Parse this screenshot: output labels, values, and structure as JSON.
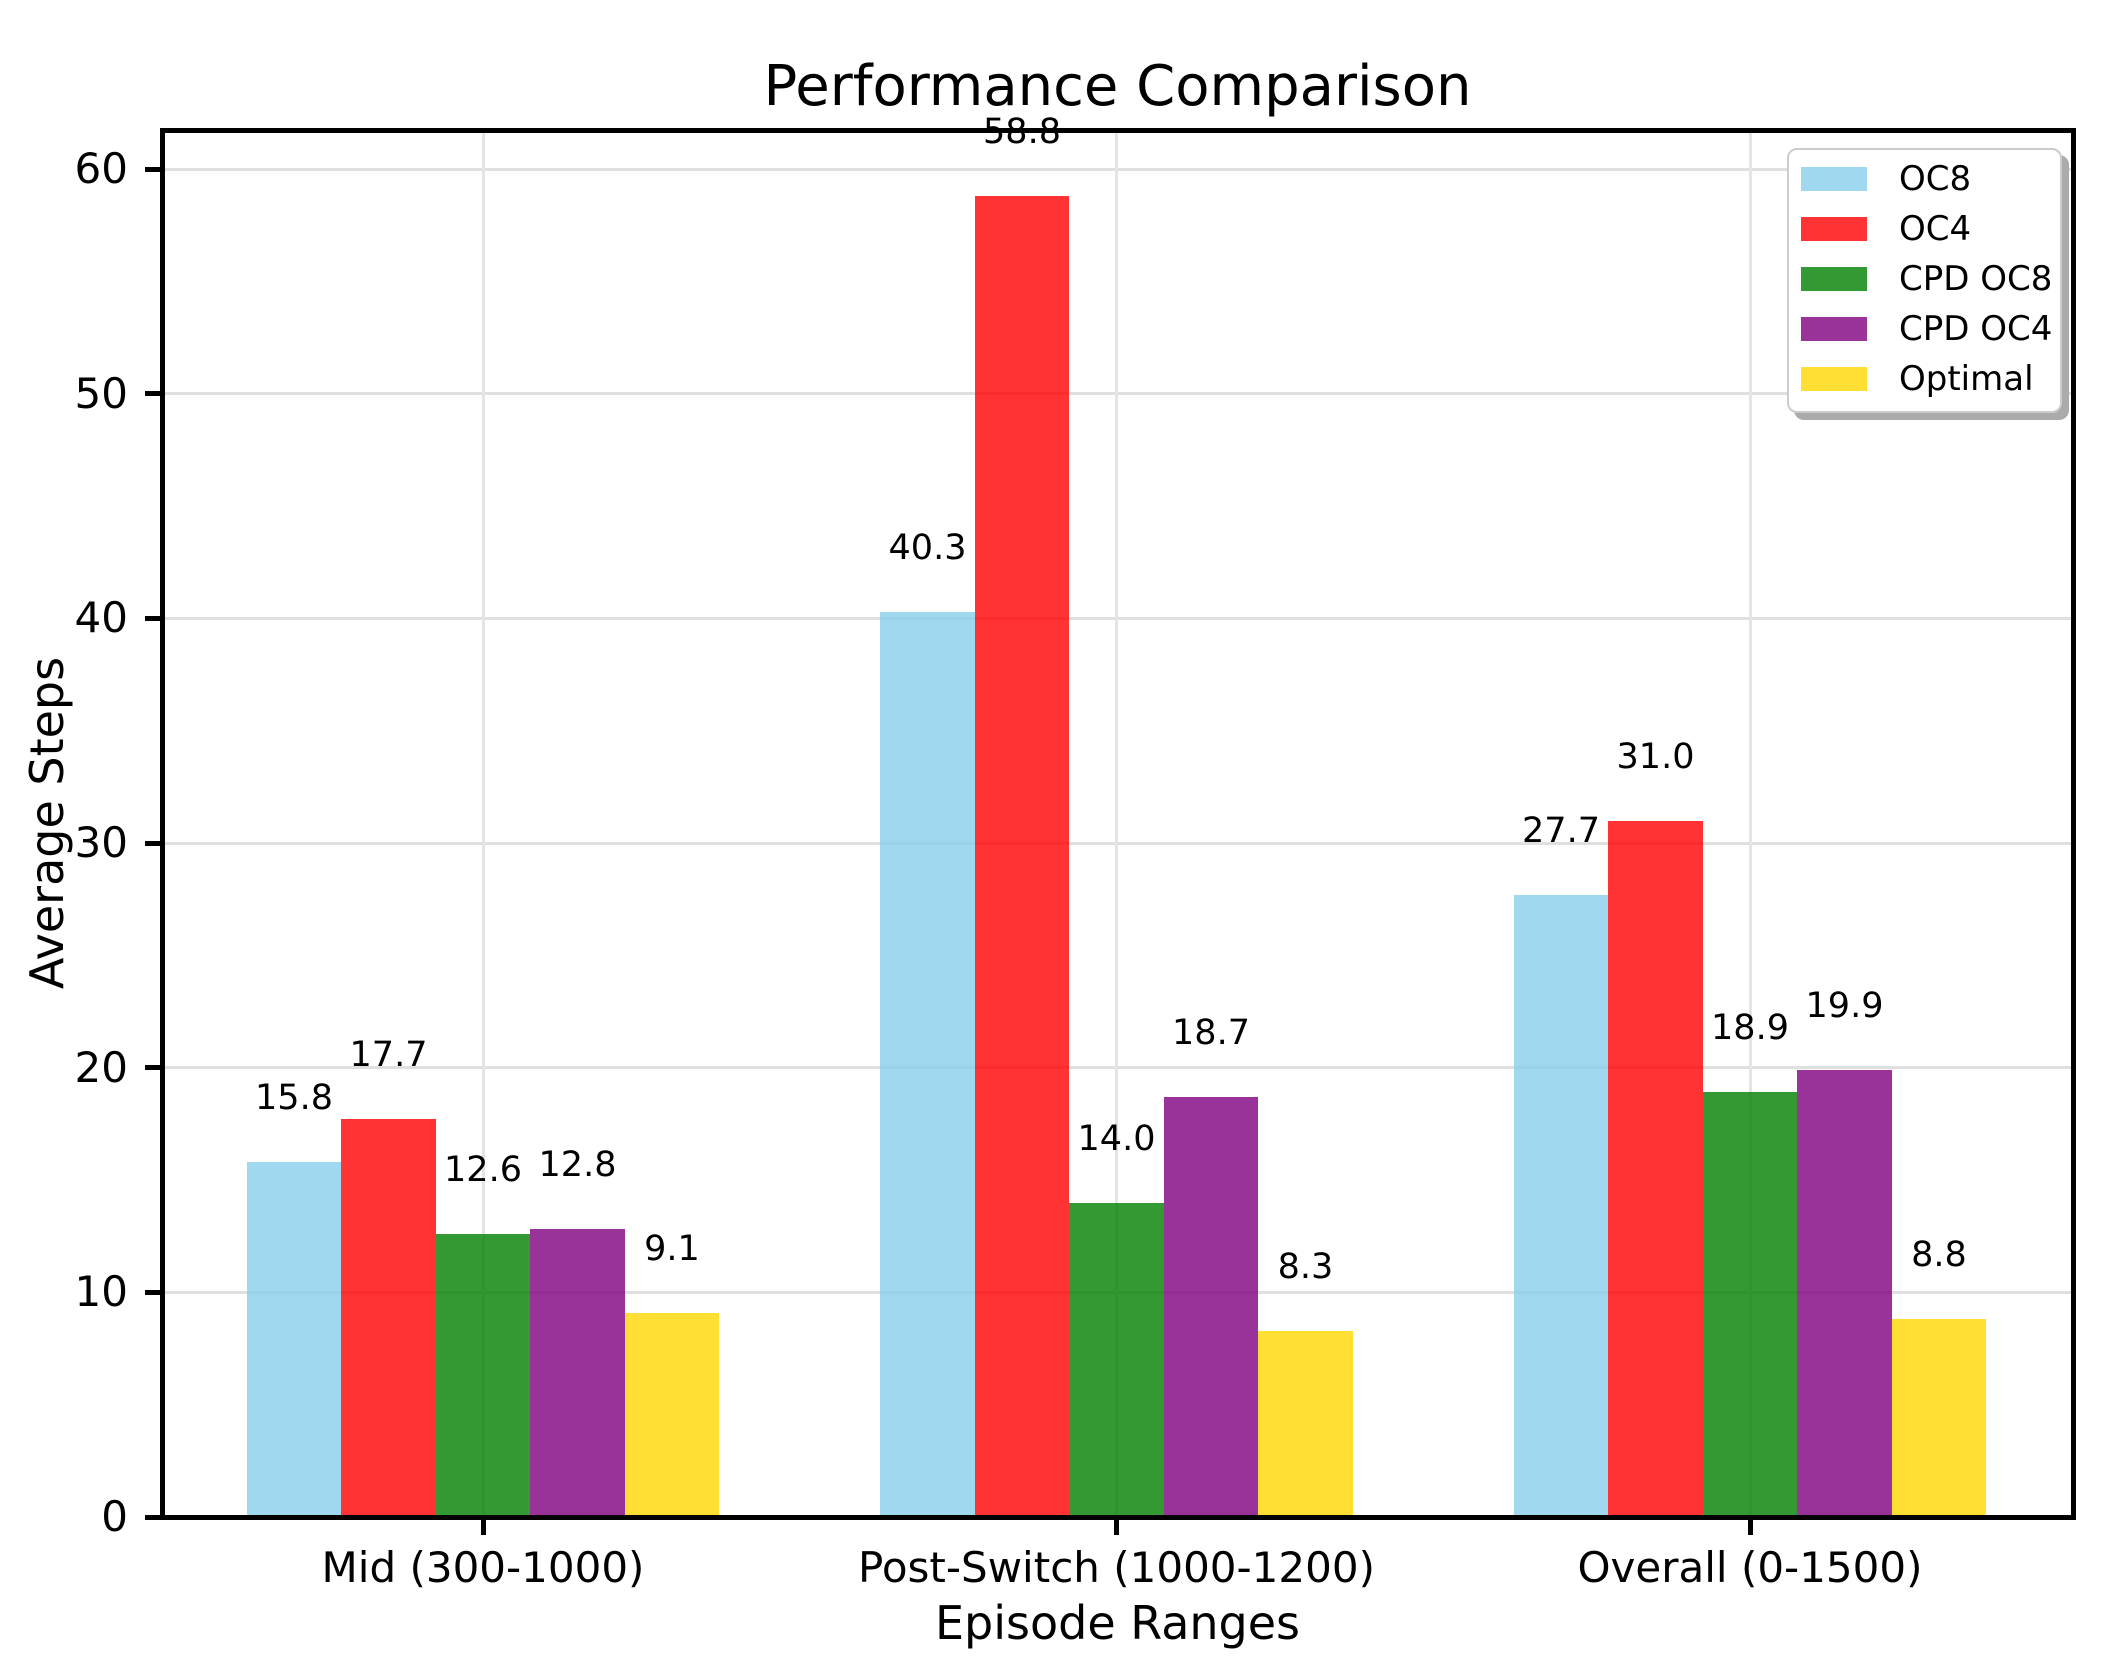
{
  "chart_data": {
    "type": "bar",
    "title": "Performance Comparison",
    "xlabel": "Episode Ranges",
    "ylabel": "Average Steps",
    "categories": [
      "Mid (300-1000)",
      "Post-Switch (1000-1200)",
      "Overall (0-1500)"
    ],
    "series": [
      {
        "name": "OC8",
        "color": "#87CEEB",
        "values": [
          15.8,
          40.3,
          27.7
        ]
      },
      {
        "name": "OC4",
        "color": "#FF0000",
        "values": [
          17.7,
          58.8,
          31.0
        ]
      },
      {
        "name": "CPD OC8",
        "color": "#008000",
        "values": [
          12.6,
          14.0,
          18.9
        ]
      },
      {
        "name": "CPD OC4",
        "color": "#800080",
        "values": [
          12.8,
          18.7,
          19.9
        ]
      },
      {
        "name": "Optimal",
        "color": "#FFD700",
        "values": [
          9.1,
          8.3,
          8.8
        ]
      }
    ],
    "bar_alpha": 0.8,
    "ylim": [
      0,
      61.74
    ],
    "yticks": [
      0,
      10,
      20,
      30,
      40,
      50,
      60
    ],
    "grid": true,
    "grid_axis": "both",
    "legend_position": "upper right",
    "value_label_format": "%.1f"
  }
}
